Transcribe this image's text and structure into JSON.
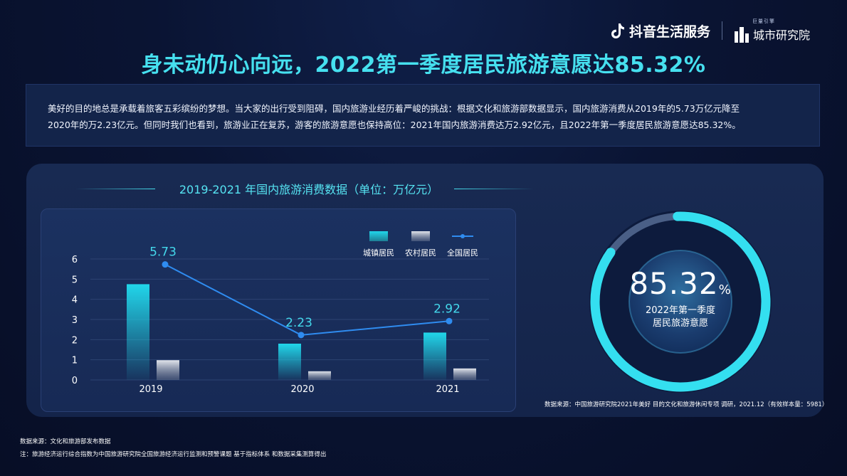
{
  "header": {
    "logo1_text": "抖音生活服务",
    "logo2_small": "巨量引擎",
    "logo2_text": "城市研究院"
  },
  "title": "身未动仍心向远，2022第一季度居民旅游意愿达85.32%",
  "intro_lines": [
    "美好的目的地总是承载着旅客五彩缤纷的梦想。当大家的出行受到阻碍，国内旅游业经历着严峻的挑战：根据文化和旅游部数据显示，国内旅游消费从2019年的5.73万亿元降至",
    "2020年的万2.23亿元。但同时我们也看到，旅游业正在复苏，游客的旅游意愿也保持高位：2021年国内旅游消费达万2.92亿元，且2022年第一季度居民旅游意愿达85.32%。"
  ],
  "chart_data": {
    "type": "bar",
    "title": "2019-2021 年国内旅游消费数据（单位：万亿元）",
    "categories": [
      "2019",
      "2020",
      "2021"
    ],
    "ylim": [
      0,
      6
    ],
    "yticks": [
      "0",
      "1",
      "2",
      "3",
      "4",
      "5",
      "6"
    ],
    "legend_position": "top-right",
    "series": [
      {
        "name": "城镇居民",
        "kind": "bar",
        "values": [
          4.75,
          1.8,
          2.35
        ],
        "color": "#20d0e6"
      },
      {
        "name": "农村居民",
        "kind": "bar",
        "values": [
          0.98,
          0.43,
          0.57
        ],
        "color": "#c9cdd6"
      },
      {
        "name": "全国居民",
        "kind": "line",
        "values": [
          5.73,
          2.23,
          2.92
        ],
        "labels": [
          "5.73",
          "2.23",
          "2.92"
        ],
        "color": "#2f8cf0"
      }
    ]
  },
  "ring": {
    "value": 85.32,
    "value_text": "85.32",
    "unit": "%",
    "label_line1": "2022年第一季度",
    "label_line2": "居民旅游意愿",
    "source": "数据来源：中国旅游研究院2021年美好 目的文化和旅游休闲专项 调研，2021.12（有效样本量：5981）",
    "colors": {
      "arc": "#34dff0",
      "track": "#4a5f86"
    }
  },
  "footer": {
    "source": "数据来源：文化和旅游部发布数据",
    "note": "注：旅游经济运行综合指数为中国旅游研究院全国旅游经济运行监测和预警课题 基于指标体系 和数据采集测算得出"
  }
}
